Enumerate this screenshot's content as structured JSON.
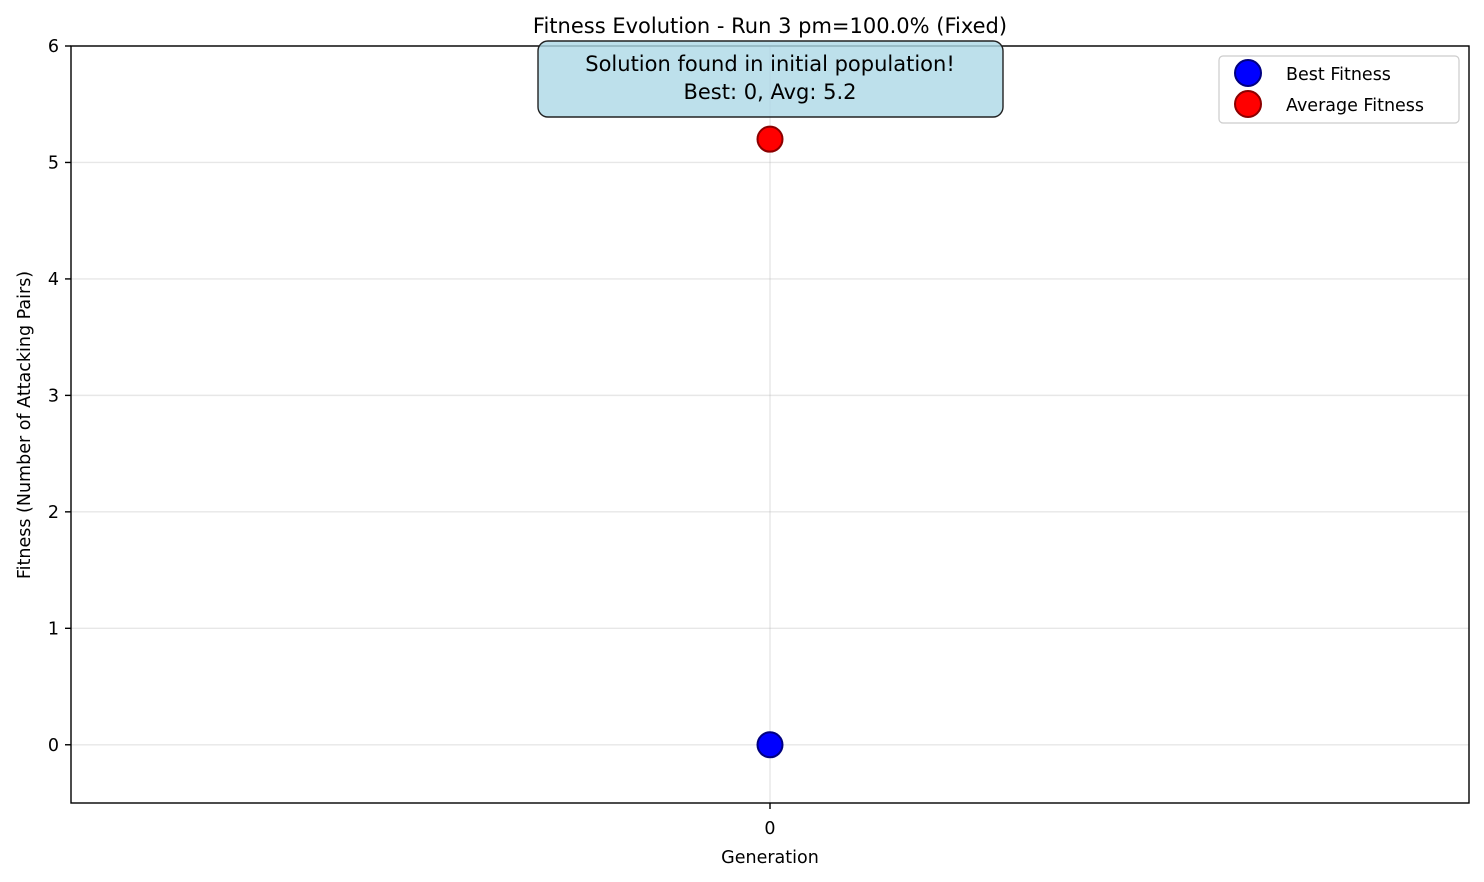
{
  "chart_data": {
    "type": "scatter",
    "title": "Fitness Evolution - Run 3 pm=100.0% (Fixed)",
    "xlabel": "Generation",
    "ylabel": "Fitness (Number of Attacking Pairs)",
    "xlim": [
      -1,
      1
    ],
    "ylim": [
      -0.5,
      6
    ],
    "xticks": [
      0
    ],
    "yticks": [
      0,
      1,
      2,
      3,
      4,
      5,
      6
    ],
    "grid": true,
    "legend_position": "top-right",
    "series": [
      {
        "name": "Best Fitness",
        "color": "#0000ff",
        "edge_color": "#000080",
        "points": [
          {
            "x": 0,
            "y": 0
          }
        ]
      },
      {
        "name": "Average Fitness",
        "color": "#ff0000",
        "edge_color": "#8b0000",
        "points": [
          {
            "x": 0,
            "y": 5.2
          }
        ]
      }
    ],
    "annotation": {
      "lines": [
        "Solution found in initial population!",
        "Best: 0, Avg: 5.2"
      ],
      "box_color": "#add8e6"
    }
  }
}
